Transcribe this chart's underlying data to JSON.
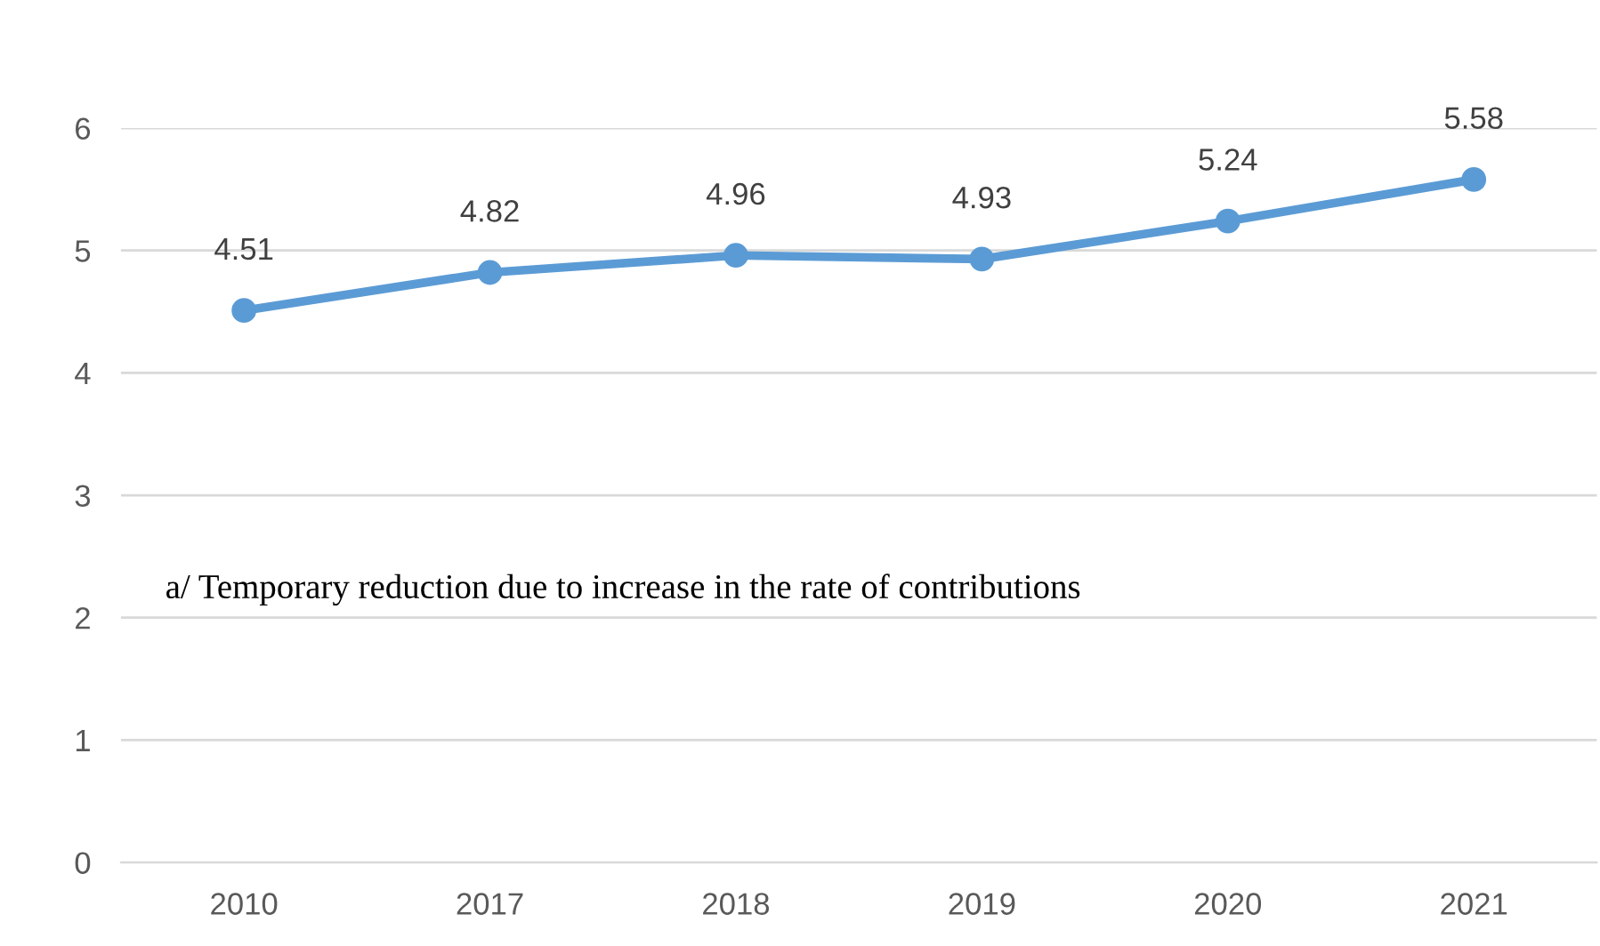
{
  "chart_data": {
    "type": "line",
    "categories": [
      "2010",
      "2017",
      "2018",
      "2019",
      "2020",
      "2021"
    ],
    "series": [
      {
        "color": "#5b9bd5",
        "values": [
          4.51,
          4.82,
          4.96,
          4.93,
          5.24,
          5.58
        ]
      }
    ],
    "ylim": [
      0,
      6
    ],
    "yticks": [
      0,
      1,
      2,
      3,
      4,
      5,
      6
    ],
    "grid": "y",
    "marker": "circle",
    "line_style": "solid",
    "data_labels": true,
    "annotations": [
      "a/ Temporary reduction due to increase in the rate of contributions"
    ]
  }
}
